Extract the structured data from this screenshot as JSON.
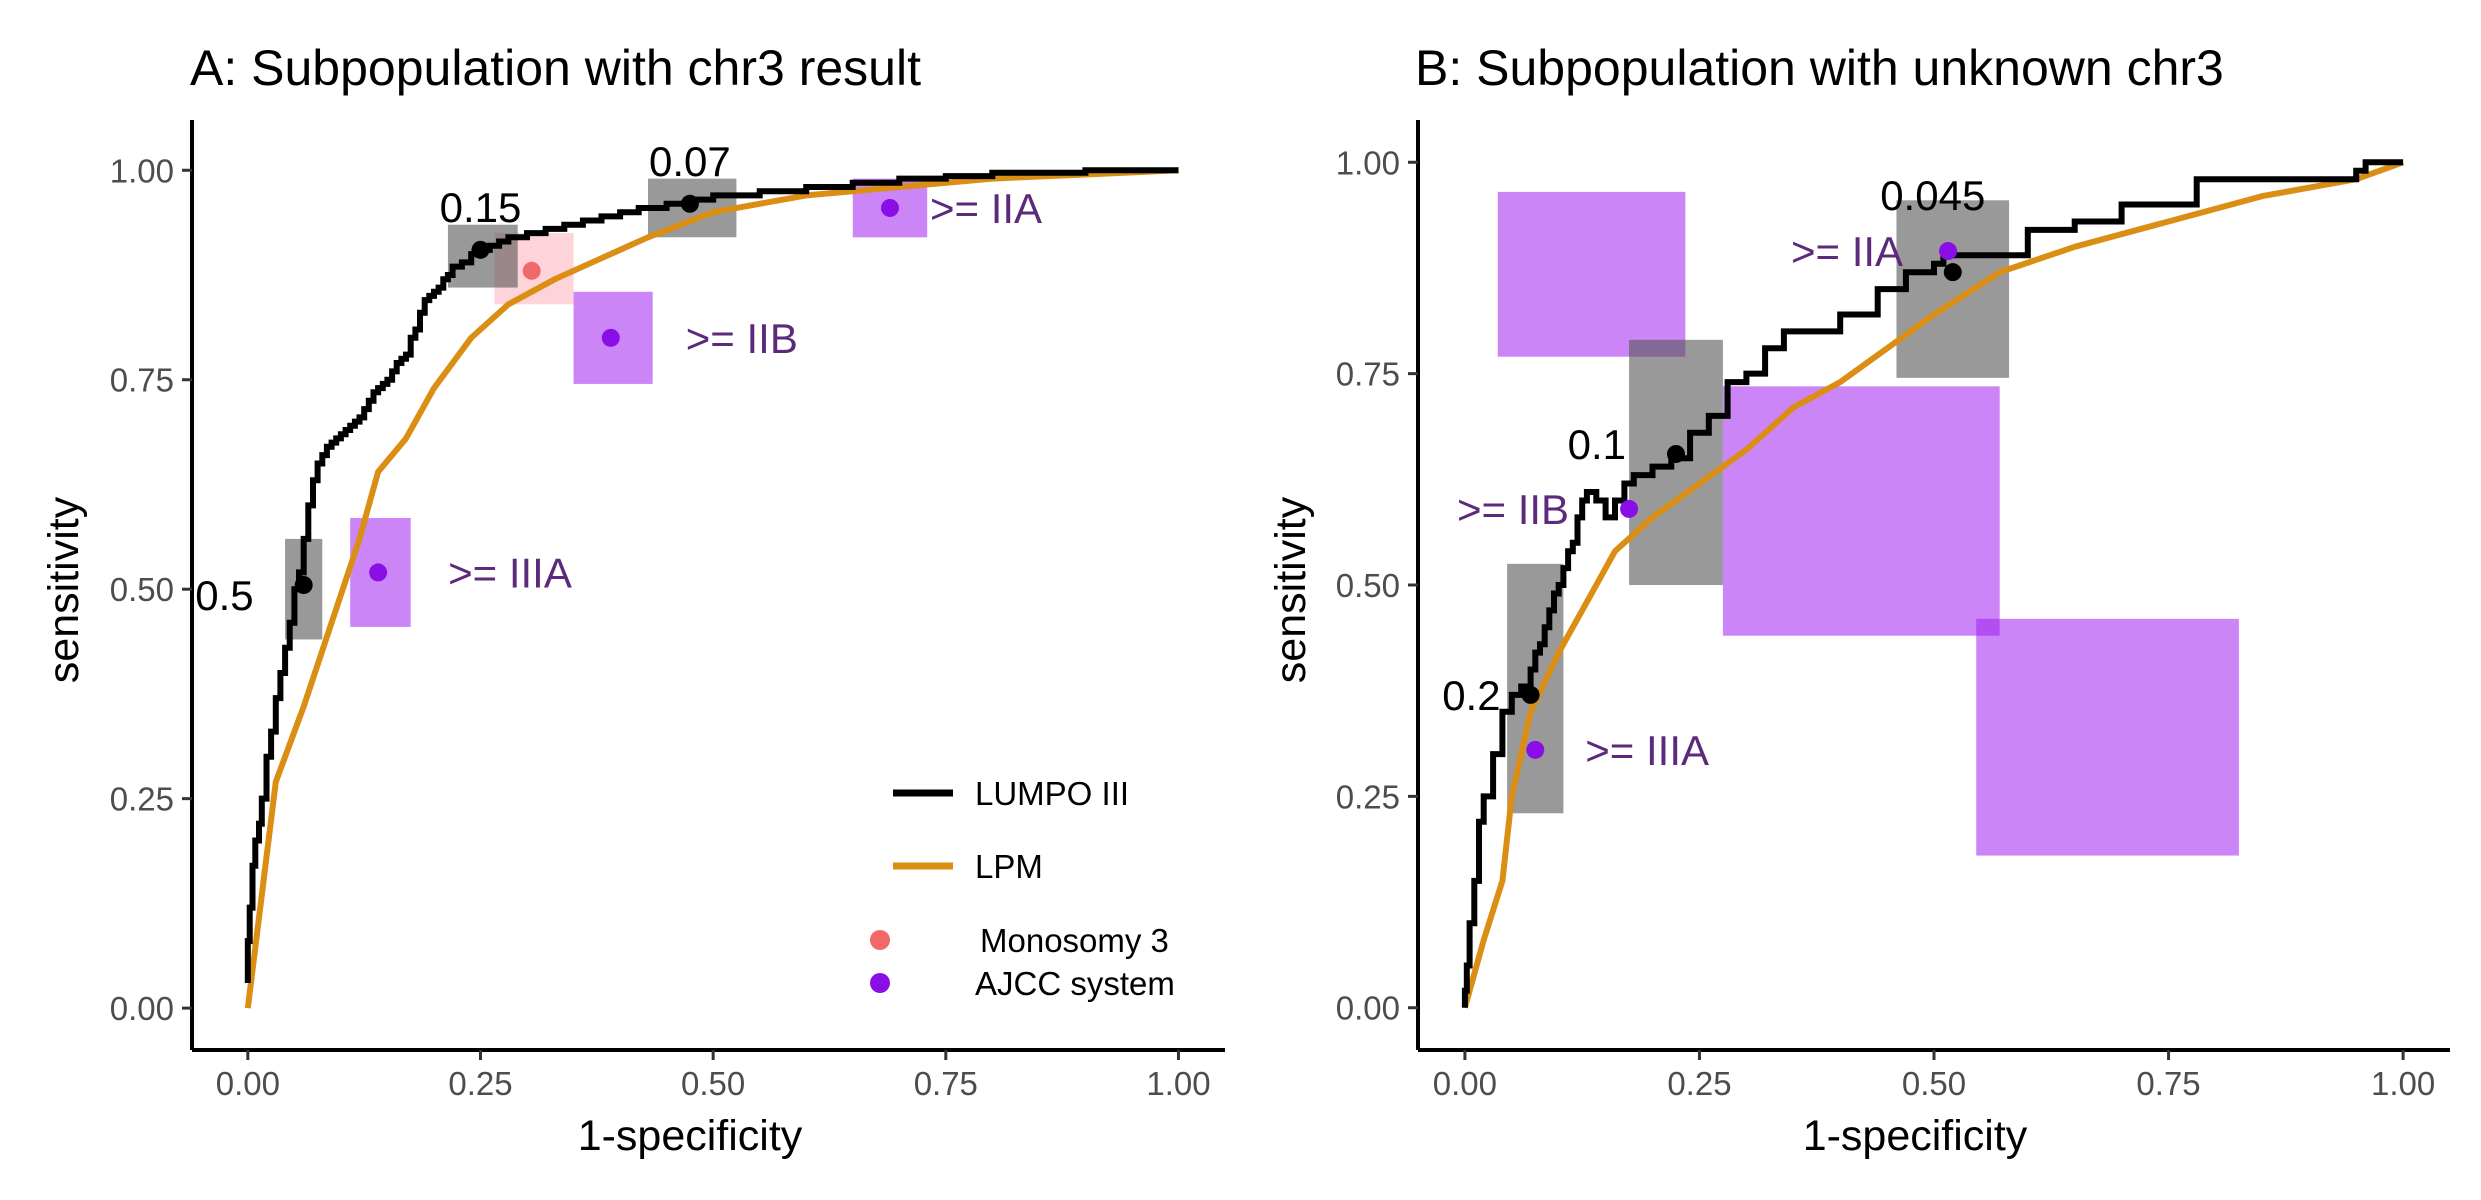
{
  "colors": {
    "lumpo": "#000000",
    "lpm": "#DB8E14",
    "mono": "#F06868",
    "ajcc": "#8A0FE6",
    "ajcc_box": "#A020F0",
    "lumpo_box": "#555555",
    "mono_box": "#FFB6C1",
    "stage_text": "#5C2A7A"
  },
  "legend": {
    "lines": [
      {
        "label": "LUMPO III",
        "color": "#000000"
      },
      {
        "label": "LPM",
        "color": "#DB8E14"
      }
    ],
    "points": [
      {
        "label": "Monosomy 3",
        "color": "#F06868"
      },
      {
        "label": "AJCC system",
        "color": "#8A0FE6"
      }
    ]
  },
  "chart_data": [
    {
      "type": "line",
      "title": "A: Subpopulation with chr3 result",
      "xlabel": "1-specificity",
      "ylabel": "sensitivity",
      "xlim": [
        -0.06,
        1.05
      ],
      "ylim": [
        -0.05,
        1.06
      ],
      "xticks": [
        "0.00",
        "0.25",
        "0.50",
        "0.75",
        "1.00"
      ],
      "yticks": [
        "0.00",
        "0.25",
        "0.50",
        "0.75",
        "1.00"
      ],
      "grid": false,
      "legend_position": "bottom-right",
      "series": [
        {
          "name": "LUMPO III",
          "x": [
            0,
            0.002,
            0.005,
            0.008,
            0.012,
            0.015,
            0.02,
            0.025,
            0.03,
            0.035,
            0.04,
            0.045,
            0.05,
            0.055,
            0.06,
            0.065,
            0.07,
            0.075,
            0.08,
            0.085,
            0.09,
            0.095,
            0.1,
            0.105,
            0.11,
            0.115,
            0.12,
            0.125,
            0.13,
            0.135,
            0.14,
            0.145,
            0.15,
            0.155,
            0.16,
            0.165,
            0.17,
            0.175,
            0.18,
            0.185,
            0.19,
            0.195,
            0.2,
            0.205,
            0.21,
            0.215,
            0.22,
            0.23,
            0.24,
            0.25,
            0.26,
            0.27,
            0.28,
            0.3,
            0.32,
            0.34,
            0.36,
            0.38,
            0.4,
            0.42,
            0.45,
            0.48,
            0.5,
            0.55,
            0.6,
            0.65,
            0.7,
            0.75,
            0.8,
            0.9,
            1.0
          ],
          "y": [
            0.03,
            0.08,
            0.12,
            0.17,
            0.2,
            0.22,
            0.25,
            0.3,
            0.33,
            0.37,
            0.4,
            0.43,
            0.46,
            0.5,
            0.52,
            0.56,
            0.6,
            0.63,
            0.65,
            0.66,
            0.67,
            0.675,
            0.68,
            0.685,
            0.69,
            0.695,
            0.7,
            0.705,
            0.715,
            0.725,
            0.735,
            0.74,
            0.745,
            0.75,
            0.76,
            0.77,
            0.775,
            0.78,
            0.8,
            0.81,
            0.83,
            0.845,
            0.85,
            0.855,
            0.86,
            0.87,
            0.875,
            0.885,
            0.89,
            0.9,
            0.905,
            0.91,
            0.915,
            0.92,
            0.925,
            0.93,
            0.935,
            0.94,
            0.945,
            0.95,
            0.955,
            0.96,
            0.965,
            0.97,
            0.975,
            0.98,
            0.985,
            0.99,
            0.993,
            0.997,
            1.0
          ]
        },
        {
          "name": "LPM",
          "x": [
            0,
            0.03,
            0.06,
            0.09,
            0.12,
            0.14,
            0.17,
            0.2,
            0.24,
            0.28,
            0.33,
            0.38,
            0.43,
            0.5,
            0.6,
            0.7,
            0.8,
            0.9,
            1.0
          ],
          "y": [
            0.0,
            0.27,
            0.36,
            0.46,
            0.56,
            0.64,
            0.68,
            0.74,
            0.8,
            0.84,
            0.87,
            0.895,
            0.92,
            0.95,
            0.97,
            0.98,
            0.99,
            0.995,
            1.0
          ]
        }
      ],
      "threshold_markers": [
        {
          "label": "0.5",
          "x": 0.06,
          "y": 0.505,
          "box": [
            0.04,
            0.08,
            0.44,
            0.56
          ]
        },
        {
          "label": "0.15",
          "x": 0.25,
          "y": 0.905,
          "box": [
            0.215,
            0.29,
            0.86,
            0.935
          ]
        },
        {
          "label": "0.07",
          "x": 0.475,
          "y": 0.96,
          "box": [
            0.43,
            0.525,
            0.92,
            0.99
          ]
        }
      ],
      "monosomy3": {
        "x": 0.305,
        "y": 0.88,
        "box": [
          0.265,
          0.35,
          0.84,
          0.925
        ]
      },
      "ajcc": [
        {
          "label": ">= IIA",
          "x": 0.69,
          "y": 0.955,
          "box": [
            0.65,
            0.73,
            0.92,
            0.99
          ]
        },
        {
          "label": ">= IIB",
          "x": 0.39,
          "y": 0.8,
          "box": [
            0.35,
            0.435,
            0.745,
            0.855
          ]
        },
        {
          "label": ">= IIIA",
          "x": 0.14,
          "y": 0.52,
          "box": [
            0.11,
            0.175,
            0.455,
            0.585
          ]
        }
      ]
    },
    {
      "type": "line",
      "title": "B: Subpopulation with unknown chr3",
      "xlabel": "1-specificity",
      "ylabel": "sensitivity",
      "xlim": [
        -0.05,
        1.05
      ],
      "ylim": [
        -0.05,
        1.05
      ],
      "xticks": [
        "0.00",
        "0.25",
        "0.50",
        "0.75",
        "1.00"
      ],
      "yticks": [
        "0.00",
        "0.25",
        "0.50",
        "0.75",
        "1.00"
      ],
      "grid": false,
      "series": [
        {
          "name": "LUMPO III",
          "x": [
            0,
            0.002,
            0.005,
            0.01,
            0.015,
            0.02,
            0.03,
            0.04,
            0.05,
            0.06,
            0.07,
            0.075,
            0.08,
            0.085,
            0.09,
            0.095,
            0.1,
            0.105,
            0.11,
            0.115,
            0.12,
            0.125,
            0.13,
            0.14,
            0.15,
            0.16,
            0.17,
            0.18,
            0.2,
            0.22,
            0.24,
            0.26,
            0.28,
            0.3,
            0.32,
            0.34,
            0.36,
            0.4,
            0.44,
            0.47,
            0.5,
            0.51,
            0.52,
            0.6,
            0.65,
            0.7,
            0.78,
            0.85,
            0.95,
            0.96,
            1.0
          ],
          "y": [
            0.0,
            0.02,
            0.05,
            0.1,
            0.15,
            0.22,
            0.25,
            0.3,
            0.35,
            0.37,
            0.38,
            0.4,
            0.42,
            0.43,
            0.45,
            0.47,
            0.49,
            0.5,
            0.52,
            0.54,
            0.55,
            0.58,
            0.6,
            0.61,
            0.6,
            0.58,
            0.6,
            0.62,
            0.63,
            0.64,
            0.65,
            0.68,
            0.7,
            0.74,
            0.75,
            0.78,
            0.8,
            0.8,
            0.82,
            0.85,
            0.87,
            0.88,
            0.89,
            0.89,
            0.92,
            0.93,
            0.95,
            0.98,
            0.98,
            0.99,
            1.0
          ]
        },
        {
          "name": "LPM",
          "x": [
            0,
            0.02,
            0.04,
            0.05,
            0.07,
            0.1,
            0.13,
            0.16,
            0.2,
            0.25,
            0.3,
            0.35,
            0.4,
            0.45,
            0.5,
            0.57,
            0.65,
            0.75,
            0.85,
            0.95,
            1.0
          ],
          "y": [
            0.0,
            0.08,
            0.15,
            0.25,
            0.35,
            0.42,
            0.48,
            0.54,
            0.58,
            0.62,
            0.66,
            0.71,
            0.74,
            0.78,
            0.82,
            0.87,
            0.9,
            0.93,
            0.96,
            0.98,
            1.0
          ]
        }
      ],
      "threshold_markers": [
        {
          "label": "0.2",
          "x": 0.07,
          "y": 0.37,
          "box": [
            0.045,
            0.105,
            0.23,
            0.525
          ]
        },
        {
          "label": "0.1",
          "x": 0.225,
          "y": 0.655,
          "box": [
            0.175,
            0.275,
            0.5,
            0.79
          ]
        },
        {
          "label": "0.045",
          "x": 0.52,
          "y": 0.87,
          "box": [
            0.46,
            0.58,
            0.745,
            0.955
          ]
        }
      ],
      "ajcc": [
        {
          "label": ">= IIA",
          "x": 0.515,
          "y": 0.895,
          "box": [
            0.035,
            0.235,
            0.77,
            0.965
          ]
        },
        {
          "label": ">= IIB",
          "x": 0.175,
          "y": 0.59,
          "box": [
            0.275,
            0.57,
            0.44,
            0.735
          ]
        },
        {
          "label": ">= IIIA",
          "x": 0.075,
          "y": 0.305,
          "box": [
            0.545,
            0.825,
            0.18,
            0.46
          ]
        }
      ]
    }
  ]
}
